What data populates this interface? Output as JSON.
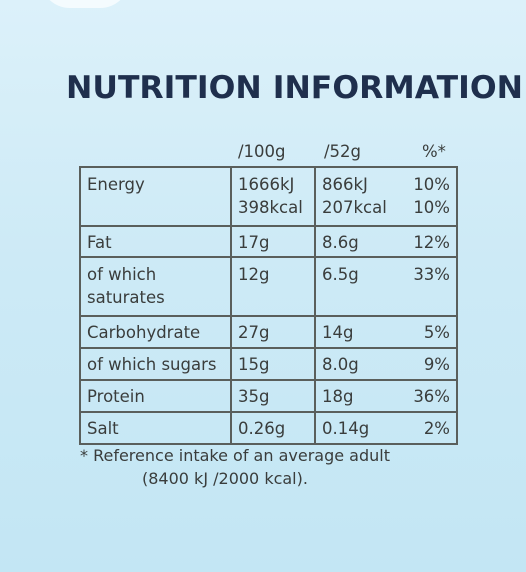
{
  "title": "NUTRITION INFORMATION",
  "columns": {
    "per100": "/100g",
    "perServing": "/52g",
    "ri": "%*"
  },
  "rows": [
    {
      "name": "Energy",
      "per100": [
        "1666kJ",
        "398kcal"
      ],
      "perServing": [
        "866kJ",
        "207kcal"
      ],
      "ri": [
        "10%",
        "10%"
      ]
    },
    {
      "name": "Fat",
      "per100": [
        "17g"
      ],
      "perServing": [
        "8.6g"
      ],
      "ri": [
        "12%"
      ]
    },
    {
      "name": [
        "of which",
        "saturates"
      ],
      "per100": [
        "12g"
      ],
      "perServing": [
        "6.5g"
      ],
      "ri": [
        "33%"
      ]
    },
    {
      "name": "Carbohydrate",
      "per100": [
        "27g"
      ],
      "perServing": [
        "14g"
      ],
      "ri": [
        "5%"
      ]
    },
    {
      "name": "of which sugars",
      "per100": [
        "15g"
      ],
      "perServing": [
        "8.0g"
      ],
      "ri": [
        "9%"
      ]
    },
    {
      "name": "Protein",
      "per100": [
        "35g"
      ],
      "perServing": [
        "18g"
      ],
      "ri": [
        "36%"
      ]
    },
    {
      "name": "Salt",
      "per100": [
        "0.26g"
      ],
      "perServing": [
        "0.14g"
      ],
      "ri": [
        "2%"
      ]
    }
  ],
  "footnote": {
    "line1": "* Reference intake of an average adult",
    "line2": "(8400 kJ /2000 kcal)."
  }
}
